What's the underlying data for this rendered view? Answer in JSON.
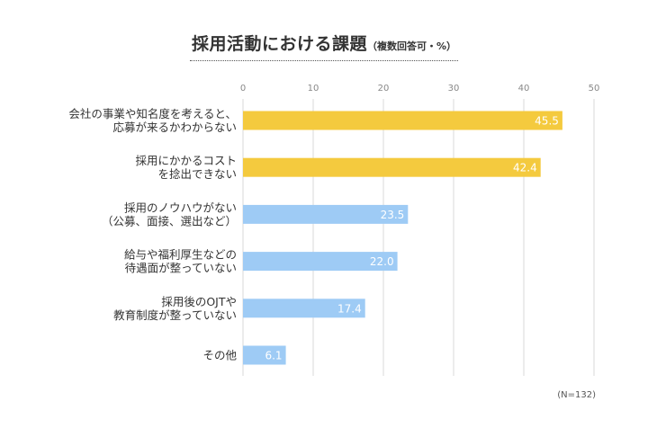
{
  "title": "採用活動における課題",
  "subtitle": "（複数回答可・%）",
  "note": "(N=132)",
  "colors": {
    "highlight": "#F4CA3E",
    "normal": "#9ECBF5",
    "grid": "#D9D9D9",
    "tick": "#888888",
    "label": "#333333",
    "value_label": "#FFFFFF"
  },
  "chart_data": {
    "type": "bar",
    "orientation": "horizontal",
    "title": "採用活動における課題",
    "subtitle": "（複数回答可・%）",
    "xlim": [
      0,
      50
    ],
    "xticks": [
      0,
      10,
      20,
      30,
      40,
      50
    ],
    "grid": true,
    "categories": [
      [
        "会社の事業や知名度を考えると、",
        "応募が来るかわからない"
      ],
      [
        "採用にかかるコスト",
        "を捻出できない"
      ],
      [
        "採用のノウハウがない",
        "（公募、面接、選出など）"
      ],
      [
        "給与や福利厚生などの",
        "待遇面が整っていない"
      ],
      [
        "採用後のOJTや",
        "教育制度が整っていない"
      ],
      [
        "その他"
      ]
    ],
    "values": [
      45.5,
      42.4,
      23.5,
      22.0,
      17.4,
      6.1
    ],
    "value_labels": [
      "45.5",
      "42.4",
      "23.5",
      "22.0",
      "17.4",
      "6.1"
    ],
    "highlighted": [
      true,
      true,
      false,
      false,
      false,
      false
    ],
    "note": "(N=132)"
  }
}
